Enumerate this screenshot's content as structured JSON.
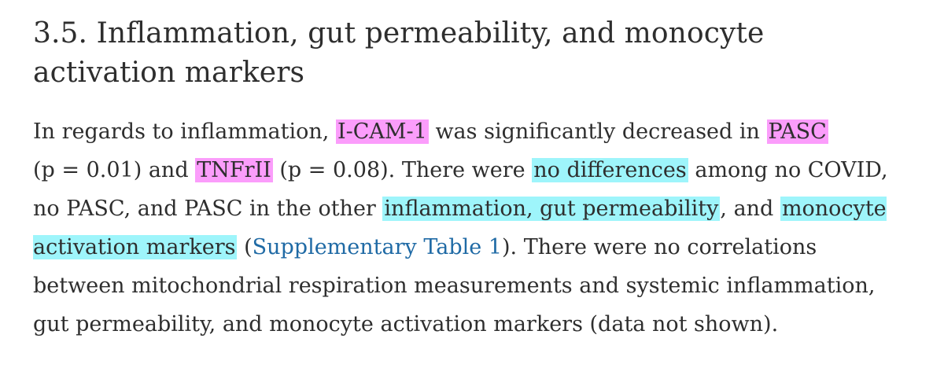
{
  "section": {
    "heading_line1": "3.5. Inflammation, gut permeability, and monocyte",
    "heading_line2": "activation markers"
  },
  "paragraph": {
    "t1": "In regards to inflammation, ",
    "hl_icam": "I-CAM-1",
    "t2": " was significantly decreased in ",
    "hl_pasc": "PASC",
    "t3": " (p = 0.01) and ",
    "hl_tnfr": "TNFrII",
    "t4": " (p = 0.08). There were ",
    "hl_nodiff": "no differences",
    "t5": " among no COVID, no PASC, and PASC in the other ",
    "hl_inflam": "inflammation, gut permeability",
    "t6": ", and ",
    "hl_monocyte": "monocyte activation markers",
    "t7": " (",
    "link_supp": "Supplementary Table 1",
    "t8": "). There were no correlations between mitochondrial respiration measurements and systemic inflammation, gut permeability, and monocyte activation markers (data not shown)."
  },
  "colors": {
    "highlight_pink": "#fb9dfb",
    "highlight_cyan": "#9ef5fb",
    "link": "#1f6aa5",
    "text": "#2e2e2e"
  }
}
